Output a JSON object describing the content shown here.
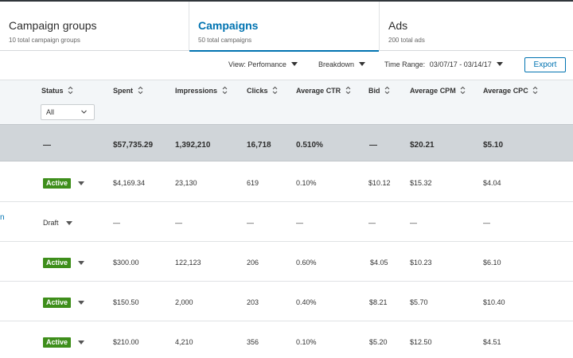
{
  "tabs": [
    {
      "title": "Campaign groups",
      "subtitle": "10 total campaign groups"
    },
    {
      "title": "Campaigns",
      "subtitle": "50 total campaigns"
    },
    {
      "title": "Ads",
      "subtitle": "200 total ads"
    }
  ],
  "controls": {
    "view_label": "View:",
    "view_value": "Perfomance",
    "breakdown_label": "Breakdown",
    "range_label": "Time Range:",
    "range_value": "03/07/17 - 03/14/17",
    "export_label": "Export"
  },
  "columns": {
    "status": "Status",
    "spent": "Spent",
    "impressions": "Impressions",
    "clicks": "Clicks",
    "ctr": "Average CTR",
    "bid": "Bid",
    "cpm": "Average CPM",
    "cpc": "Average CPC"
  },
  "status_filter": "All",
  "totals": {
    "status": "—",
    "spent": "$57,735.29",
    "impressions": "1,392,210",
    "clicks": "16,718",
    "ctr": "0.510%",
    "bid": "—",
    "cpm": "$20.21",
    "cpc": "$5.10"
  },
  "rows": [
    {
      "status": "Active",
      "spent": "$4,169.34",
      "impressions": "23,130",
      "clicks": "619",
      "ctr": "0.10%",
      "bid": "$10.12",
      "cpm": "$15.32",
      "cpc": "$4.04"
    },
    {
      "status": "Draft",
      "spent": "—",
      "impressions": "—",
      "clicks": "—",
      "ctr": "—",
      "bid": "—",
      "cpm": "—",
      "cpc": "—",
      "edge": "n"
    },
    {
      "status": "Active",
      "spent": "$300.00",
      "impressions": "122,123",
      "clicks": "206",
      "ctr": "0.60%",
      "bid": "$4.05",
      "cpm": "$10.23",
      "cpc": "$6.10"
    },
    {
      "status": "Active",
      "spent": "$150.50",
      "impressions": "2,000",
      "clicks": "203",
      "ctr": "0.40%",
      "bid": "$8.21",
      "cpm": "$5.70",
      "cpc": "$10.40"
    },
    {
      "status": "Active",
      "spent": "$210.00",
      "impressions": "4,210",
      "clicks": "356",
      "ctr": "0.10%",
      "bid": "$5.20",
      "cpm": "$12.50",
      "cpc": "$4.51"
    }
  ],
  "colors": {
    "accent": "#0073b1",
    "active_badge": "#3e8e1b",
    "total_row": "#d0d5d9"
  }
}
